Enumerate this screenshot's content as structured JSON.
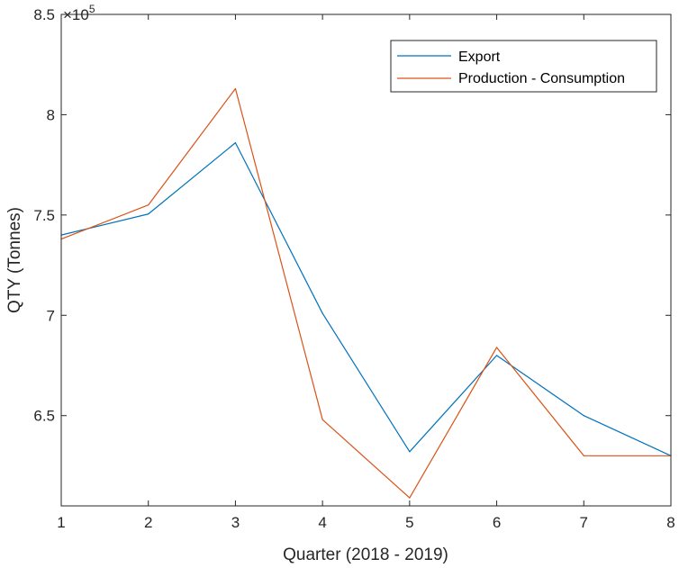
{
  "chart_data": {
    "type": "line",
    "xlabel": "Quarter (2018 - 2019)",
    "ylabel": "QTY (Tonnes)",
    "exponent_base": "×10",
    "exponent_power": "5",
    "x": [
      1,
      2,
      3,
      4,
      5,
      6,
      7,
      8
    ],
    "xlim": [
      1,
      8
    ],
    "ylim": [
      6.05,
      8.5
    ],
    "yticks": [
      6.5,
      7,
      7.5,
      8,
      8.5
    ],
    "ytick_labels": [
      "6.5",
      "7",
      "7.5",
      "8",
      "8.5"
    ],
    "xtick_labels": [
      "1",
      "2",
      "3",
      "4",
      "5",
      "6",
      "7",
      "8"
    ],
    "grid": false,
    "legend_position": "top-right",
    "series": [
      {
        "name": "Export",
        "color": "#0072BD",
        "values": [
          7.4,
          7.505,
          7.86,
          7.01,
          6.32,
          6.8,
          6.5,
          6.3
        ]
      },
      {
        "name": "Production - Consumption",
        "color": "#D95319",
        "values": [
          7.38,
          7.55,
          8.13,
          6.48,
          6.09,
          6.84,
          6.3,
          6.3
        ]
      }
    ]
  }
}
